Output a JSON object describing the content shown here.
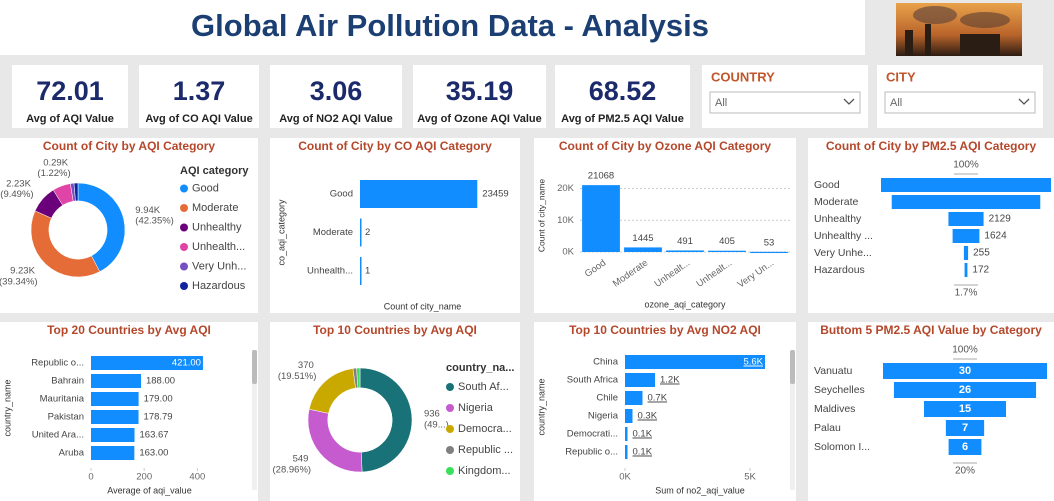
{
  "header": {
    "title": "Global Air Pollution Data - Analysis"
  },
  "cards": [
    {
      "value": 72.01,
      "label": "Avg of AQI Value"
    },
    {
      "value": 1.37,
      "label": "Avg of CO AQI Value"
    },
    {
      "value": 3.06,
      "label": "Avg of NO2 AQI Value"
    },
    {
      "value": 35.19,
      "label": "Avg of Ozone AQI Value"
    },
    {
      "value": 68.52,
      "label": "Avg of PM2.5 AQI Value"
    }
  ],
  "slicers": [
    {
      "title": "COUNTRY",
      "value": "All"
    },
    {
      "title": "CITY",
      "value": "All"
    }
  ],
  "chart_data": [
    {
      "type": "donut",
      "title": "Count of City by AQI Category",
      "legend_title": "AQI category",
      "categories": [
        "Good",
        "Moderate",
        "Unhealthy",
        "Unhealth...",
        "Very Unh...",
        "Hazardous"
      ],
      "values": [
        9.94,
        9.23,
        2.23,
        1.46,
        0.29,
        0.32
      ],
      "value_labels": [
        "9.94K (42.35%)",
        "9.23K (39.34%)",
        "2.23K (9.49%)",
        null,
        "0.29K (1.22%)",
        null
      ],
      "colors": [
        "#118DFF",
        "#E66C37",
        "#6B007B",
        "#E044A7",
        "#744EC2",
        "#12239E"
      ]
    },
    {
      "type": "hbar",
      "title": "Count of City by CO AQI Category",
      "y_label": "co_aqi_category",
      "x_label": "Count of city_name",
      "categories": [
        "Good",
        "Moderate",
        "Unhealth..."
      ],
      "values": [
        23459,
        2,
        1
      ],
      "color": "#118DFF",
      "xlim": [
        0,
        25000
      ]
    },
    {
      "type": "column",
      "title": "Count of City by Ozone AQI Category",
      "y_label": "Count of city_name",
      "x_label": "ozone_aqi_category",
      "categories": [
        "Good",
        "Moderate",
        "Unhealt...",
        "Unhealt...",
        "Very Un..."
      ],
      "values": [
        21068,
        1445,
        491,
        405,
        53
      ],
      "color": "#118DFF",
      "ylim": [
        0,
        23000
      ],
      "yticks": [
        {
          "value": 0,
          "label": "0K"
        },
        {
          "value": 10000,
          "label": "10K"
        },
        {
          "value": 20000,
          "label": "20K"
        }
      ],
      "grid": true
    },
    {
      "type": "funnel",
      "title": "Count of City by PM2.5 AQI Category",
      "categories": [
        "Good",
        "Moderate",
        "Unhealthy",
        "Unhealthy ...",
        "Very Unhe...",
        "Hazardous"
      ],
      "values": [
        10300,
        9000,
        2129,
        1624,
        255,
        172
      ],
      "value_labels": [
        null,
        null,
        "2129",
        "1624",
        "255",
        "172"
      ],
      "color": "#118DFF",
      "label_position": "outside",
      "top_label": "100%",
      "bottom_label": "1.7%"
    },
    {
      "type": "hbar",
      "title": "Top 20 Countries by Avg AQI",
      "y_label": "country_name",
      "x_label": "Average of aqi_value",
      "categories": [
        "Republic o...",
        "Bahrain",
        "Mauritania",
        "Pakistan",
        "United Ara...",
        "Aruba"
      ],
      "values": [
        421,
        188,
        179,
        178.79,
        163.67,
        163
      ],
      "value_labels": [
        "421.00",
        "188.00",
        "179.00",
        "178.79",
        "163.67",
        "163.00"
      ],
      "color": "#118DFF",
      "xlim": [
        0,
        440
      ],
      "xticks": [
        0,
        200,
        400
      ]
    },
    {
      "type": "donut",
      "title": "Top 10 Countries by Avg AQI",
      "legend_title": "country_na...",
      "categories": [
        "South Af...",
        "Nigeria",
        "Democra...",
        "Republic ...",
        "Kingdom..."
      ],
      "values": [
        936,
        549,
        370,
        21,
        20
      ],
      "value_labels": [
        "936 (49...)",
        "549 (28.96%)",
        "370 (19.51%)",
        null,
        null
      ],
      "colors": [
        "#197278",
        "#C55BCF",
        "#C9A900",
        "#7F7F7F",
        "#3BE05A"
      ]
    },
    {
      "type": "hbar",
      "title": "Top 10 Countries by Avg NO2 AQI",
      "y_label": "country_name",
      "x_label": "Sum of no2_aqi_value",
      "categories": [
        "China",
        "South Africa",
        "Chile",
        "Nigeria",
        "Democrati...",
        "Republic o..."
      ],
      "values": [
        5600,
        1200,
        700,
        300,
        100,
        100
      ],
      "value_labels": [
        "5.6K",
        "1.2K",
        "0.7K",
        "0.3K",
        "0.1K",
        "0.1K"
      ],
      "color": "#118DFF",
      "xlim": [
        0,
        6000
      ],
      "xticks": [
        {
          "value": 0,
          "label": "0K"
        },
        {
          "value": 5000,
          "label": "5K"
        }
      ]
    },
    {
      "type": "funnel",
      "title": "Buttom 5 PM2.5 AQI Value by Category",
      "categories": [
        "Vanuatu",
        "Seychelles",
        "Maldives",
        "Palau",
        "Solomon I..."
      ],
      "values": [
        30,
        26,
        15,
        7,
        6
      ],
      "color": "#118DFF",
      "label_position": "inside",
      "top_label": "100%",
      "bottom_label": "20%"
    }
  ]
}
